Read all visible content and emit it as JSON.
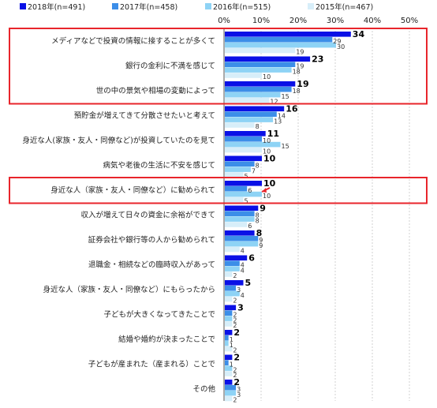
{
  "chart_data": {
    "type": "bar",
    "orientation": "horizontal",
    "xlim": [
      0,
      50
    ],
    "ticks": [
      "0%",
      "10%",
      "20%",
      "30%",
      "40%",
      "50%"
    ],
    "tick_values": [
      0,
      10,
      20,
      30,
      40,
      50
    ],
    "legend_position": "top",
    "grid": true,
    "categories": [
      "メディアなどで投資の情報に接することが多くて",
      "銀行の金利に不満を感じて",
      "世の中の景気や相場の変動によって",
      "預貯金が増えてきて分散させたいと考えて",
      "身近な人(家族・友人・同僚など)が投資していたのを見て",
      "病気や老後の生活に不安を感じて",
      "身近な人（家族・友人・同僚など）に勧められて",
      "収入が増えて日々の資金に余裕ができて",
      "証券会社や銀行等の人から勧められて",
      "退職金・相続などの臨時収入があって",
      "身近な人（家族・友人・同僚など）にもらったから",
      "子どもが大きくなってきたことで",
      "結婚や婚約が決まったことで",
      "子どもが産まれた（産まれる）ことで",
      "その他"
    ],
    "series": [
      {
        "name": "2018年(n=491)",
        "color": "#0a10e6",
        "values": [
          34,
          23,
          19,
          16,
          11,
          10,
          10,
          9,
          8,
          6,
          5,
          3,
          2,
          2,
          2
        ]
      },
      {
        "name": "2017年(n=458)",
        "color": "#3c8ee8",
        "values": [
          29,
          19,
          18,
          14,
          10,
          8,
          6,
          8,
          9,
          4,
          3,
          2,
          1,
          1,
          3
        ]
      },
      {
        "name": "2016年(n=515)",
        "color": "#8ed3f5",
        "values": [
          30,
          18,
          15,
          13,
          15,
          7,
          10,
          8,
          9,
          4,
          4,
          2,
          1,
          2,
          3
        ]
      },
      {
        "name": "2015年(n=467)",
        "color": "#d7eef9",
        "values": [
          19,
          10,
          12,
          8,
          10,
          5,
          5,
          6,
          4,
          2,
          2,
          2,
          2,
          2,
          2
        ]
      }
    ],
    "highlighted_categories": [
      0,
      1,
      2,
      6
    ],
    "highlight_color": "#e8252b",
    "annotation_arrow_category": 6
  }
}
